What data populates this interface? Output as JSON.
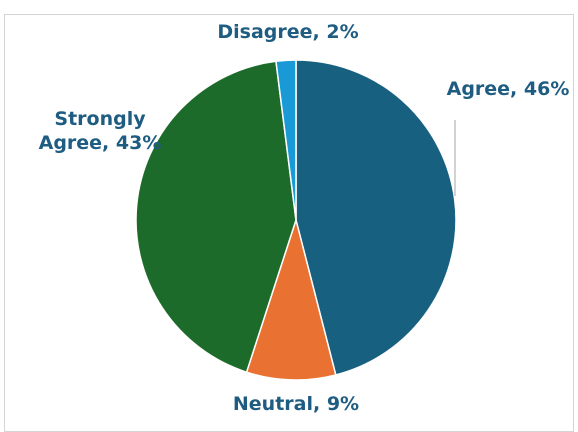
{
  "chart_title": "",
  "chart_data": {
    "type": "pie",
    "title": "",
    "categories": [
      "Agree",
      "Neutral",
      "Strongly Agree",
      "Disagree"
    ],
    "values": [
      46,
      9,
      43,
      2
    ],
    "labels": [
      {
        "lines": [
          "Agree, 46%"
        ]
      },
      {
        "lines": [
          "Neutral,  9%"
        ]
      },
      {
        "lines": [
          "Strongly",
          "Agree, 43%"
        ]
      },
      {
        "lines": [
          "Disagree, 2%"
        ]
      }
    ],
    "colors": [
      "#17607f",
      "#e97132",
      "#1c6b2a",
      "#199ad6"
    ],
    "label_color": "#1f5c82",
    "start_angle_deg": 0,
    "direction": "clockwise",
    "legend": "none"
  }
}
